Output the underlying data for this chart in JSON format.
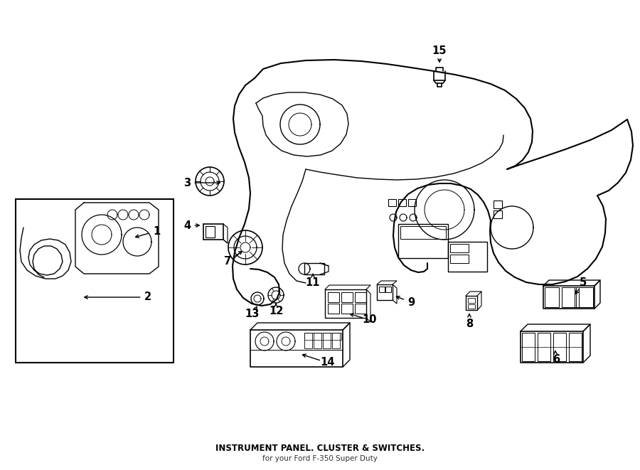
{
  "title": "INSTRUMENT PANEL. CLUSTER & SWITCHES.",
  "subtitle": "for your Ford F-350 Super Duty",
  "bg_color": "#ffffff",
  "line_color": "#000000",
  "text_color": "#000000",
  "fig_width": 9.0,
  "fig_height": 6.61,
  "dpi": 100
}
